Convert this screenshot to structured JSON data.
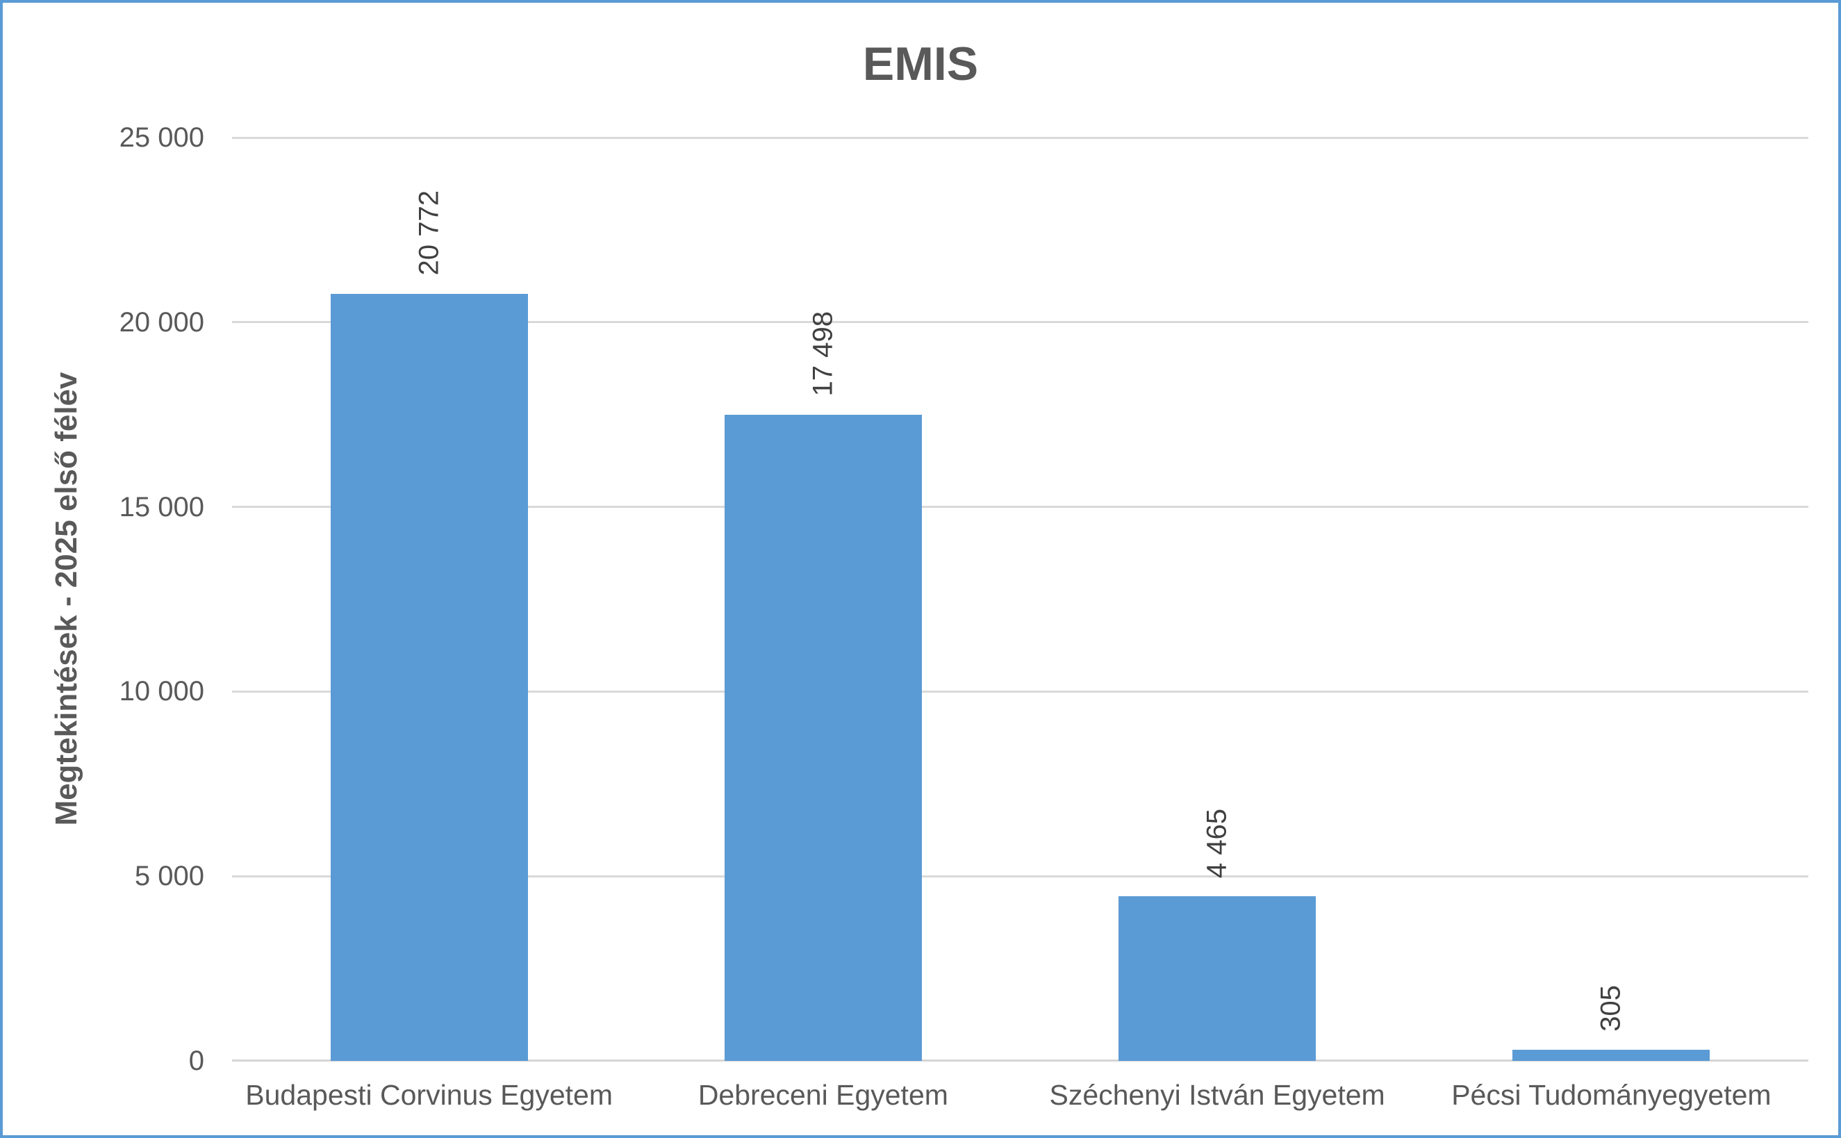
{
  "chart_data": {
    "type": "bar",
    "title": "EMIS",
    "xlabel": "",
    "ylabel": "Megtekintések - 2025 első félév",
    "categories": [
      "Budapesti Corvinus Egyetem",
      "Debreceni Egyetem",
      "Széchenyi István Egyetem",
      "Pécsi Tudományegyetem"
    ],
    "values": [
      20772,
      17498,
      4465,
      305
    ],
    "value_labels": [
      "20 772",
      "17 498",
      "4 465",
      "305"
    ],
    "y_ticks": [
      {
        "value": 0,
        "label": "0"
      },
      {
        "value": 5000,
        "label": "5 000"
      },
      {
        "value": 10000,
        "label": "10 000"
      },
      {
        "value": 15000,
        "label": "15 000"
      },
      {
        "value": 20000,
        "label": "20 000"
      },
      {
        "value": 25000,
        "label": "25 000"
      }
    ],
    "ylim": [
      0,
      25000
    ],
    "grid": true,
    "legend": false,
    "colors": {
      "bar": "#5B9BD5",
      "frame_border": "#5B9BD5",
      "gridline": "#D9D9D9",
      "axis_line": "#D5D5D5",
      "title_text": "#595959",
      "axis_text": "#595959",
      "data_label_text": "#404040"
    }
  }
}
